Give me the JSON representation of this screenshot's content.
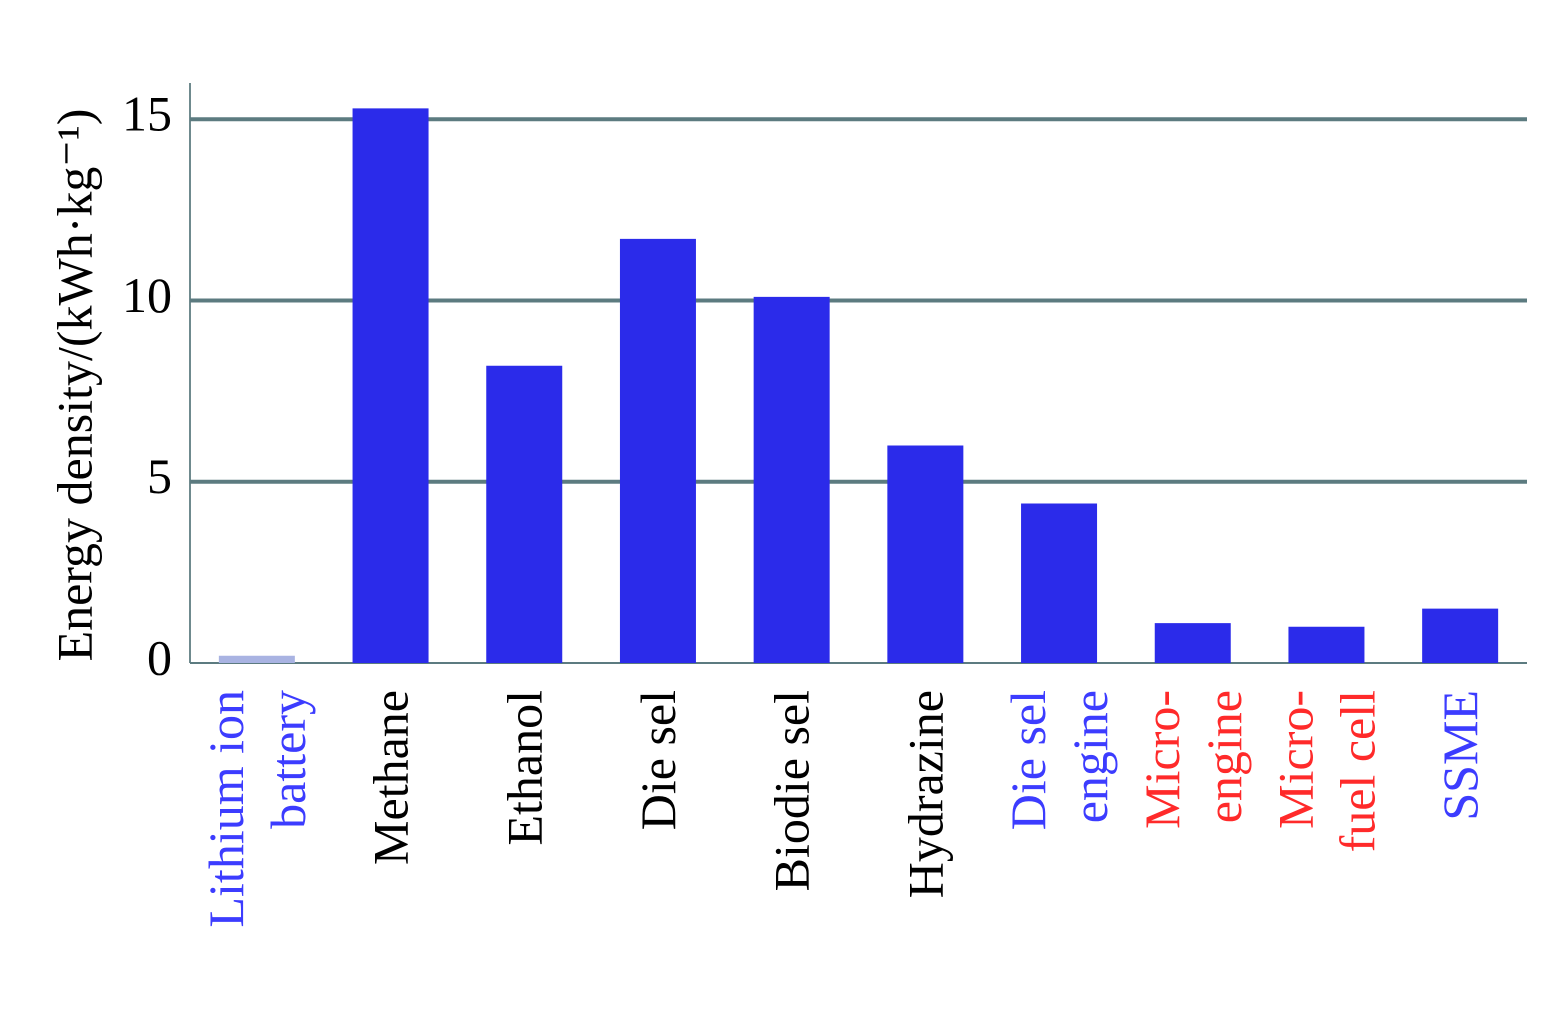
{
  "chart_data": {
    "type": "bar",
    "y_label": "Energy density/(kWh·kg⁻¹)",
    "categories": [
      "Lithium ion\nbattery",
      "Methane",
      "Ethanol",
      "Die sel",
      "Biodie sel",
      "Hydrazine",
      "Die sel\nengine",
      "Micro-\nengine",
      "Micro-\nfuel cell",
      "SSME"
    ],
    "values": [
      0.2,
      15.3,
      8.2,
      11.7,
      10.1,
      6.0,
      4.4,
      1.1,
      1.0,
      1.5
    ],
    "colors": [
      "#a9b3e2",
      "#2b2bea",
      "#2b2bea",
      "#2b2bea",
      "#2b2bea",
      "#2b2bea",
      "#2b2bea",
      "#2b2bea",
      "#2b2bea",
      "#2b2bea"
    ],
    "label_colors": [
      "#3c3cff",
      "#000000",
      "#000000",
      "#000000",
      "#000000",
      "#000000",
      "#3c3cff",
      "#ff2a2a",
      "#ff2a2a",
      "#3c3cff"
    ],
    "ylim": [
      0,
      16
    ],
    "yticks": [
      0,
      5,
      10,
      15
    ],
    "grid": true
  }
}
